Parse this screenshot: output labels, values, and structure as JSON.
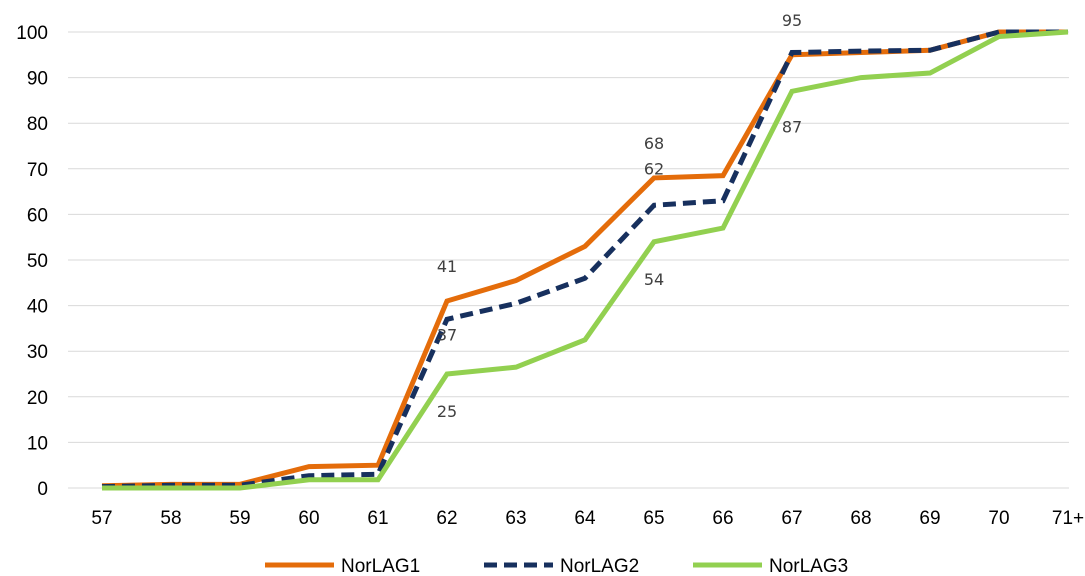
{
  "chart_data": {
    "type": "line",
    "title": "",
    "xlabel": "",
    "ylabel": "",
    "categories": [
      "57",
      "58",
      "59",
      "60",
      "61",
      "62",
      "63",
      "64",
      "65",
      "66",
      "67",
      "68",
      "69",
      "70",
      "71+"
    ],
    "ylim": [
      0,
      100
    ],
    "yticks": [
      "0",
      "10",
      "20",
      "30",
      "40",
      "50",
      "60",
      "70",
      "80",
      "90",
      "100"
    ],
    "grid": true,
    "legend_position": "bottom",
    "series": [
      {
        "name": "NorLAG1",
        "color": "#E46C0A",
        "dash": "solid",
        "values": [
          0.5,
          0.8,
          0.8,
          4.7,
          5.0,
          41,
          45.5,
          53,
          68,
          68.5,
          95,
          95.5,
          96,
          100,
          100
        ],
        "labels": [
          {
            "index": 5,
            "text": "41"
          },
          {
            "index": 8,
            "text": "68"
          },
          {
            "index": 10,
            "text": "95"
          }
        ]
      },
      {
        "name": "NorLAG2",
        "color": "#17305E",
        "dash": "dashed",
        "values": [
          0.3,
          0.6,
          0.6,
          2.7,
          3.0,
          37,
          40.5,
          46,
          62,
          63,
          95.5,
          95.8,
          96,
          100,
          100
        ],
        "labels": [
          {
            "index": 5,
            "text": "37"
          },
          {
            "index": 8,
            "text": "62"
          }
        ]
      },
      {
        "name": "NorLAG3",
        "color": "#92D050",
        "dash": "solid",
        "values": [
          0,
          0,
          0,
          1.8,
          1.8,
          25,
          26.5,
          32.5,
          54,
          57,
          87,
          90,
          91,
          99,
          100
        ],
        "labels": [
          {
            "index": 5,
            "text": "25"
          },
          {
            "index": 8,
            "text": "54"
          },
          {
            "index": 10,
            "text": "87"
          }
        ]
      }
    ]
  }
}
